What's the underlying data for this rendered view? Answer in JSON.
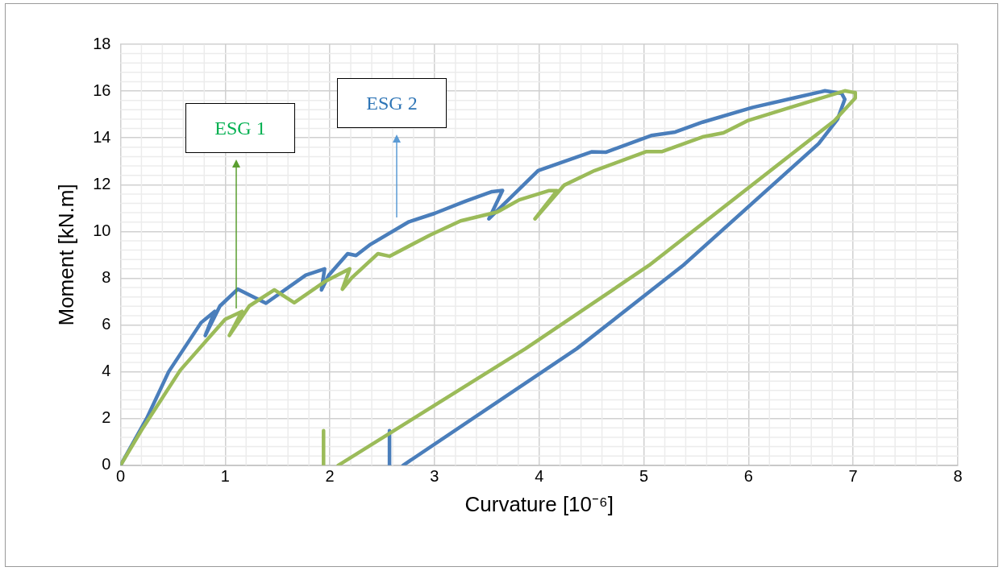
{
  "chart_data": {
    "type": "line",
    "xlabel": "Curvature [10⁻⁶]",
    "ylabel": "Moment [kN.m]",
    "xlim": [
      0,
      8
    ],
    "xticks": [
      0,
      1,
      2,
      3,
      4,
      5,
      6,
      7,
      8
    ],
    "ylim": [
      0,
      18
    ],
    "yticks": [
      0,
      2,
      4,
      6,
      8,
      10,
      12,
      14,
      16,
      18
    ],
    "grid": true,
    "line_style": "solid",
    "annotations": [
      "ESG 1",
      "ESG 2"
    ],
    "series": [
      {
        "color": "#9bbb59",
        "x": [
          0,
          0.2,
          0.57,
          1.0,
          1.16,
          1.04,
          1.23,
          1.47,
          1.66,
          1.95,
          2.19,
          2.12,
          2.21,
          2.46,
          2.57,
          2.96,
          3.25,
          3.6,
          3.81,
          4.09,
          4.17,
          3.96,
          4.24,
          4.53,
          5.02,
          5.17,
          5.56,
          5.76,
          5.99,
          6.4,
          6.92,
          7.02,
          7.02,
          6.82,
          5.05,
          3.87,
          2.08
        ],
        "values": [
          0,
          1.5,
          4.06,
          6.24,
          6.58,
          5.55,
          6.81,
          7.5,
          6.95,
          7.85,
          8.4,
          7.53,
          8.02,
          9.05,
          8.94,
          9.85,
          10.45,
          10.83,
          11.35,
          11.74,
          11.74,
          10.54,
          11.98,
          12.6,
          13.41,
          13.41,
          14.04,
          14.21,
          14.73,
          15.3,
          16.01,
          15.93,
          15.7,
          14.73,
          8.55,
          4.99,
          0
        ]
      },
      {
        "color": "#4a7ebb",
        "x": [
          0,
          0.25,
          0.46,
          0.77,
          0.9,
          0.81,
          0.95,
          1.12,
          1.39,
          1.77,
          1.95,
          1.92,
          1.99,
          2.17,
          2.25,
          2.39,
          2.75,
          3.0,
          3.3,
          3.55,
          3.65,
          3.52,
          3.99,
          4.5,
          4.64,
          5.07,
          5.3,
          5.56,
          6.04,
          6.43,
          6.73,
          6.89,
          6.92,
          6.85,
          6.67,
          5.37,
          4.36,
          2.7
        ],
        "values": [
          0,
          2,
          4.0,
          6.1,
          6.58,
          5.55,
          6.81,
          7.53,
          6.93,
          8.13,
          8.4,
          7.5,
          8.13,
          9.05,
          8.97,
          9.45,
          10.4,
          10.77,
          11.3,
          11.7,
          11.75,
          10.54,
          12.6,
          13.4,
          13.39,
          14.1,
          14.25,
          14.67,
          15.3,
          15.7,
          16.01,
          15.9,
          15.65,
          14.79,
          13.75,
          8.53,
          4.99,
          0
        ]
      },
      {
        "color": "#9bbb59",
        "x": [
          1.94,
          1.94
        ],
        "values": [
          0,
          1.48
        ]
      },
      {
        "color": "#4a7ebb",
        "x": [
          2.57,
          2.57
        ],
        "values": [
          0,
          1.48
        ]
      }
    ]
  }
}
